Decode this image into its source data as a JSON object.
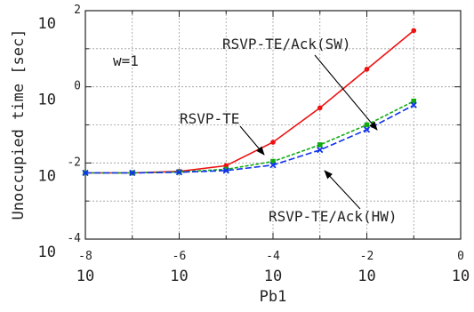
{
  "chart_data": {
    "type": "line",
    "xlabel": "Pb1",
    "ylabel": "Unoccupied time [sec]",
    "x_scale": "log",
    "y_scale": "log",
    "xlim": [
      1e-08,
      1
    ],
    "ylim": [
      0.0001,
      100
    ],
    "grid": true,
    "x_ticks": [
      {
        "value": 1e-08,
        "base": "10",
        "exp": "-8"
      },
      {
        "value": 1e-06,
        "base": "10",
        "exp": "-6"
      },
      {
        "value": 0.0001,
        "base": "10",
        "exp": "-4"
      },
      {
        "value": 0.01,
        "base": "10",
        "exp": "-2"
      },
      {
        "value": 1,
        "base": "10",
        "exp": "0"
      }
    ],
    "y_ticks": [
      {
        "value": 0.0001,
        "base": "10",
        "exp": "-4"
      },
      {
        "value": 0.01,
        "base": "10",
        "exp": "-2"
      },
      {
        "value": 1,
        "base": "10",
        "exp": "0"
      },
      {
        "value": 100,
        "base": "10",
        "exp": "2"
      }
    ],
    "series": [
      {
        "name": "RSVP-TE",
        "color": "#ee1111",
        "dash": "",
        "marker": "circle",
        "x": [
          1e-08,
          1e-07,
          1e-06,
          1e-05,
          0.0001,
          0.001,
          0.01,
          0.1
        ],
        "y": [
          0.0055,
          0.0055,
          0.006,
          0.0085,
          0.035,
          0.28,
          2.9,
          30
        ]
      },
      {
        "name": "RSVP-TE/Ack(SW)",
        "color": "#11aa11",
        "dash": "4 2",
        "marker": "square",
        "x": [
          1e-08,
          1e-07,
          1e-06,
          1e-05,
          0.0001,
          0.001,
          0.01,
          0.1
        ],
        "y": [
          0.0055,
          0.0055,
          0.0058,
          0.0068,
          0.011,
          0.03,
          0.1,
          0.42
        ]
      },
      {
        "name": "RSVP-TE/Ack(HW)",
        "color": "#1133ee",
        "dash": "7 3",
        "marker": "x",
        "x": [
          1e-08,
          1e-07,
          1e-06,
          1e-05,
          0.0001,
          0.001,
          0.01,
          0.1
        ],
        "y": [
          0.0055,
          0.0055,
          0.0057,
          0.0063,
          0.0088,
          0.022,
          0.075,
          0.33
        ]
      }
    ],
    "annotations": [
      {
        "text": "w=1",
        "arrow": false
      },
      {
        "text": "RSVP-TE",
        "arrow": true,
        "series": "RSVP-TE"
      },
      {
        "text": "RSVP-TE/Ack(SW)",
        "arrow": true,
        "series": "RSVP-TE/Ack(SW)"
      },
      {
        "text": "RSVP-TE/Ack(HW)",
        "arrow": true,
        "series": "RSVP-TE/Ack(HW)"
      }
    ]
  }
}
